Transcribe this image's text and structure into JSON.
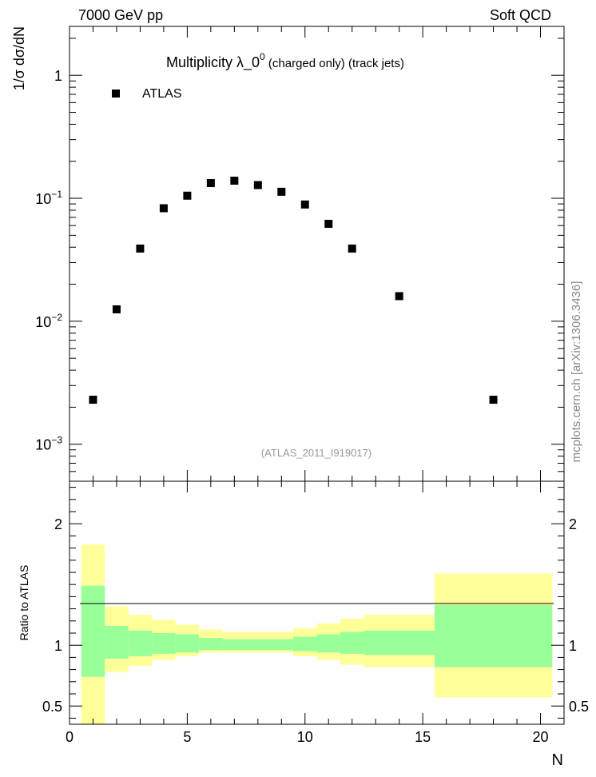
{
  "header": {
    "left": "7000 GeV pp",
    "right": "Soft QCD"
  },
  "side_label": "mcplots.cern.ch [arXiv:1306.3436]",
  "chart_data": [
    {
      "type": "scatter",
      "title_main": "Multiplicity  λ_0",
      "title_sup": "0",
      "title_sub": " (charged only) (track jets)",
      "ylabel": "1/σ dσ/dN",
      "yscale": "log",
      "ylim": [
        0.0005,
        2.5
      ],
      "xlim": [
        0,
        21
      ],
      "ytick_labels": [
        {
          "value": 1,
          "base": "1",
          "exp": ""
        },
        {
          "value": 0.1,
          "base": "10",
          "exp": "−1"
        },
        {
          "value": 0.01,
          "base": "10",
          "exp": "−2"
        },
        {
          "value": 0.001,
          "base": "10",
          "exp": "−3"
        }
      ],
      "legend": {
        "label": "ATLAS",
        "position": "top-left"
      },
      "watermark": "(ATLAS_2011_I919017)",
      "series": [
        {
          "name": "ATLAS",
          "color": "#000000",
          "x": [
            1,
            2,
            3,
            4,
            5,
            6,
            7,
            8,
            9,
            10,
            11,
            12,
            14,
            18
          ],
          "y": [
            0.0023,
            0.0125,
            0.039,
            0.083,
            0.105,
            0.133,
            0.139,
            0.128,
            0.113,
            0.089,
            0.062,
            0.039,
            0.016,
            0.0023
          ]
        }
      ]
    },
    {
      "type": "area",
      "ylabel": "Ratio to ATLAS",
      "xlabel": "N",
      "ylim": [
        0.35,
        2.35
      ],
      "xlim": [
        0,
        21
      ],
      "xticks": [
        0,
        5,
        10,
        15,
        20
      ],
      "yticks": [
        0.5,
        1,
        2
      ],
      "reference_line": 1,
      "bands": {
        "colors": {
          "stat": "#99ff99",
          "total": "#ffff99"
        },
        "bins": [
          {
            "lo": 0.5,
            "hi": 1.5,
            "stat": [
              0.74,
              1.49
            ],
            "total": [
              0.35,
              1.83
            ]
          },
          {
            "lo": 1.5,
            "hi": 2.5,
            "stat": [
              0.89,
              1.16
            ],
            "total": [
              0.78,
              1.32
            ]
          },
          {
            "lo": 2.5,
            "hi": 3.5,
            "stat": [
              0.91,
              1.12
            ],
            "total": [
              0.83,
              1.25
            ]
          },
          {
            "lo": 3.5,
            "hi": 4.5,
            "stat": [
              0.93,
              1.1
            ],
            "total": [
              0.88,
              1.21
            ]
          },
          {
            "lo": 4.5,
            "hi": 5.5,
            "stat": [
              0.94,
              1.09
            ],
            "total": [
              0.91,
              1.17
            ]
          },
          {
            "lo": 5.5,
            "hi": 6.5,
            "stat": [
              0.96,
              1.06
            ],
            "total": [
              0.94,
              1.13
            ]
          },
          {
            "lo": 6.5,
            "hi": 7.5,
            "stat": [
              0.96,
              1.05
            ],
            "total": [
              0.94,
              1.11
            ]
          },
          {
            "lo": 7.5,
            "hi": 8.5,
            "stat": [
              0.96,
              1.05
            ],
            "total": [
              0.94,
              1.11
            ]
          },
          {
            "lo": 8.5,
            "hi": 9.5,
            "stat": [
              0.96,
              1.05
            ],
            "total": [
              0.94,
              1.11
            ]
          },
          {
            "lo": 9.5,
            "hi": 10.5,
            "stat": [
              0.95,
              1.07
            ],
            "total": [
              0.91,
              1.14
            ]
          },
          {
            "lo": 10.5,
            "hi": 11.5,
            "stat": [
              0.94,
              1.09
            ],
            "total": [
              0.88,
              1.18
            ]
          },
          {
            "lo": 11.5,
            "hi": 12.5,
            "stat": [
              0.93,
              1.11
            ],
            "total": [
              0.84,
              1.22
            ]
          },
          {
            "lo": 12.5,
            "hi": 15.5,
            "stat": [
              0.92,
              1.12
            ],
            "total": [
              0.82,
              1.25
            ]
          },
          {
            "lo": 15.5,
            "hi": 20.5,
            "stat": [
              0.82,
              1.33
            ],
            "total": [
              0.57,
              1.59
            ]
          }
        ]
      }
    }
  ]
}
